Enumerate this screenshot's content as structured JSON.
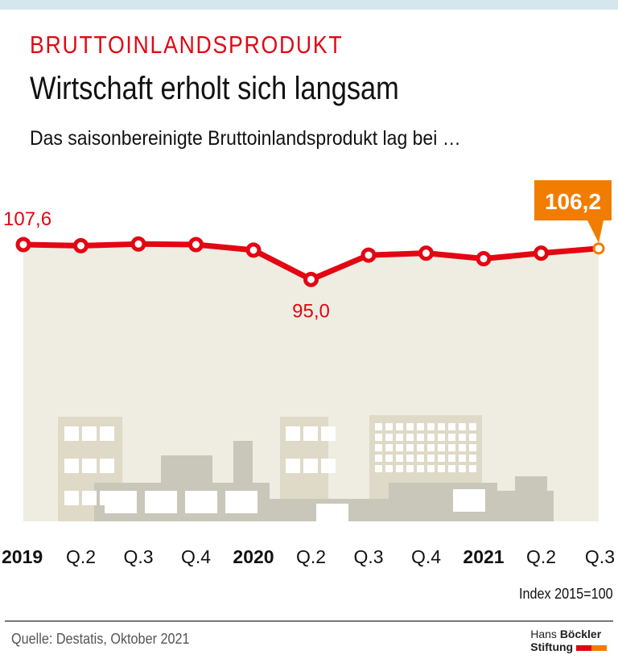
{
  "header": {
    "kicker": "BRUTTOINLANDSPRODUKT",
    "title": "Wirtschaft erholt sich langsam",
    "subtitle": "Das saisonbereinigte Bruttoinlandsprodukt lag bei …"
  },
  "chart_data": {
    "type": "line",
    "categories": [
      "2019",
      "Q.2",
      "Q.3",
      "Q.4",
      "2020",
      "Q.2",
      "Q.3",
      "Q.4",
      "2021",
      "Q.2",
      "Q.3"
    ],
    "bold_categories": [
      "2019",
      "2020",
      "2021"
    ],
    "values": [
      107.6,
      107.2,
      107.8,
      107.6,
      105.6,
      95.0,
      103.8,
      104.5,
      102.5,
      104.5,
      106.2
    ],
    "data_labels": [
      {
        "index": 0,
        "text": "107,6"
      },
      {
        "index": 5,
        "text": "95,0"
      },
      {
        "index": 10,
        "text": "106,2"
      }
    ],
    "unit_label": "Index 2015=100",
    "grid": false,
    "colors": {
      "line": "#e30613",
      "highlight": "#f07d00",
      "area": "#efede2"
    }
  },
  "footer": {
    "source": "Quelle: Destatis, Oktober 2021",
    "logo_line1a": "Hans ",
    "logo_line1b": "Böckler",
    "logo_line2": "Stiftung",
    "logo_colors": [
      "#e30613",
      "#f07d00"
    ]
  }
}
